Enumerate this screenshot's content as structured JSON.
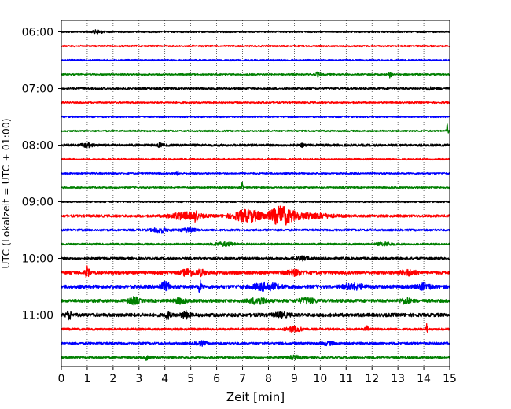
{
  "chart_data": {
    "type": "line",
    "title": "",
    "xlabel": "Zeit  [min]",
    "ylabel": "UTC (Lokalzeit = UTC + 01:00)",
    "xlim": [
      0,
      15
    ],
    "xticks": [
      "0",
      "1",
      "2",
      "3",
      "4",
      "5",
      "6",
      "7",
      "8",
      "9",
      "10",
      "11",
      "12",
      "13",
      "14",
      "15"
    ],
    "yticks": [
      "06:00",
      "07:00",
      "08:00",
      "09:00",
      "10:00",
      "11:00"
    ],
    "start_time": "06:00",
    "trace_interval_min": 15,
    "grid": "vertical dotted lines at each minute",
    "color_cycle": [
      "#000000",
      "#ff0000",
      "#0000ff",
      "#008000"
    ],
    "traces": [
      {
        "time": "06:00",
        "color": "#000000",
        "amplitude": 1.0,
        "events": [
          {
            "t": 1.4,
            "amp": 2,
            "width": 0.2
          }
        ]
      },
      {
        "time": "06:15",
        "color": "#ff0000",
        "amplitude": 1.0,
        "events": []
      },
      {
        "time": "06:30",
        "color": "#0000ff",
        "amplitude": 1.0,
        "events": []
      },
      {
        "time": "06:45",
        "color": "#008000",
        "amplitude": 1.0,
        "events": [
          {
            "t": 9.9,
            "amp": 2.5,
            "width": 0.1
          },
          {
            "t": 12.7,
            "amp": 4,
            "width": 0.05
          }
        ]
      },
      {
        "time": "07:00",
        "color": "#000000",
        "amplitude": 1.2,
        "events": [
          {
            "t": 14.2,
            "amp": 2,
            "width": 0.1
          }
        ]
      },
      {
        "time": "07:15",
        "color": "#ff0000",
        "amplitude": 1.0,
        "events": []
      },
      {
        "time": "07:30",
        "color": "#0000ff",
        "amplitude": 1.0,
        "events": []
      },
      {
        "time": "07:45",
        "color": "#008000",
        "amplitude": 1.0,
        "events": [
          {
            "t": 14.9,
            "amp": 8,
            "width": 0.04
          }
        ]
      },
      {
        "time": "08:00",
        "color": "#000000",
        "amplitude": 1.5,
        "events": [
          {
            "t": 1.0,
            "amp": 2,
            "width": 0.2
          },
          {
            "t": 3.8,
            "amp": 2,
            "width": 0.1
          },
          {
            "t": 9.3,
            "amp": 2.5,
            "width": 0.05
          }
        ]
      },
      {
        "time": "08:15",
        "color": "#ff0000",
        "amplitude": 1.0,
        "events": []
      },
      {
        "time": "08:30",
        "color": "#0000ff",
        "amplitude": 1.0,
        "events": [
          {
            "t": 4.5,
            "amp": 3,
            "width": 0.04
          }
        ]
      },
      {
        "time": "08:45",
        "color": "#008000",
        "amplitude": 1.0,
        "events": [
          {
            "t": 7.0,
            "amp": 7,
            "width": 0.04
          }
        ]
      },
      {
        "time": "09:00",
        "color": "#000000",
        "amplitude": 1.0,
        "events": []
      },
      {
        "time": "09:15",
        "color": "#ff0000",
        "amplitude": 1.6,
        "events": [
          {
            "t": 4.8,
            "amp": 4,
            "width": 0.6
          },
          {
            "t": 5.2,
            "amp": 6,
            "width": 0.05
          },
          {
            "t": 7.2,
            "amp": 7,
            "width": 0.6
          },
          {
            "t": 8.5,
            "amp": 11,
            "width": 0.45
          },
          {
            "t": 9.6,
            "amp": 3,
            "width": 0.8
          }
        ]
      },
      {
        "time": "09:30",
        "color": "#0000ff",
        "amplitude": 1.3,
        "events": [
          {
            "t": 3.8,
            "amp": 2.5,
            "width": 0.3
          },
          {
            "t": 4.9,
            "amp": 2,
            "width": 0.3
          }
        ]
      },
      {
        "time": "09:45",
        "color": "#008000",
        "amplitude": 1.2,
        "events": [
          {
            "t": 6.3,
            "amp": 2,
            "width": 0.4
          },
          {
            "t": 12.5,
            "amp": 2,
            "width": 0.3
          }
        ]
      },
      {
        "time": "10:00",
        "color": "#000000",
        "amplitude": 1.4,
        "events": [
          {
            "t": 9.3,
            "amp": 2,
            "width": 0.3
          }
        ]
      },
      {
        "time": "10:15",
        "color": "#ff0000",
        "amplitude": 2.0,
        "events": [
          {
            "t": 1.0,
            "amp": 7,
            "width": 0.08
          },
          {
            "t": 4.9,
            "amp": 4,
            "width": 0.25
          },
          {
            "t": 5.4,
            "amp": 3,
            "width": 0.2
          },
          {
            "t": 9.0,
            "amp": 3,
            "width": 0.3
          },
          {
            "t": 13.4,
            "amp": 3,
            "width": 0.3
          }
        ]
      },
      {
        "time": "10:30",
        "color": "#0000ff",
        "amplitude": 2.2,
        "events": [
          {
            "t": 4.0,
            "amp": 5,
            "width": 0.2
          },
          {
            "t": 5.35,
            "amp": 7,
            "width": 0.06
          },
          {
            "t": 7.9,
            "amp": 4,
            "width": 0.5
          },
          {
            "t": 11.3,
            "amp": 3,
            "width": 0.4
          },
          {
            "t": 14.0,
            "amp": 3,
            "width": 0.3
          }
        ]
      },
      {
        "time": "10:45",
        "color": "#008000",
        "amplitude": 2.0,
        "events": [
          {
            "t": 2.8,
            "amp": 4,
            "width": 0.2
          },
          {
            "t": 4.6,
            "amp": 3,
            "width": 0.2
          },
          {
            "t": 7.6,
            "amp": 4,
            "width": 0.3
          },
          {
            "t": 9.5,
            "amp": 3,
            "width": 0.3
          },
          {
            "t": 13.3,
            "amp": 3,
            "width": 0.2
          }
        ]
      },
      {
        "time": "11:00",
        "color": "#000000",
        "amplitude": 2.2,
        "events": [
          {
            "t": 0.3,
            "amp": 5,
            "width": 0.1
          },
          {
            "t": 4.1,
            "amp": 4,
            "width": 0.1
          },
          {
            "t": 4.8,
            "amp": 4,
            "width": 0.15
          },
          {
            "t": 8.5,
            "amp": 2,
            "width": 0.3
          }
        ]
      },
      {
        "time": "11:15",
        "color": "#ff0000",
        "amplitude": 1.4,
        "events": [
          {
            "t": 9.0,
            "amp": 3,
            "width": 0.3
          },
          {
            "t": 11.8,
            "amp": 4,
            "width": 0.06
          },
          {
            "t": 14.1,
            "amp": 9,
            "width": 0.04
          }
        ]
      },
      {
        "time": "11:30",
        "color": "#0000ff",
        "amplitude": 1.4,
        "events": [
          {
            "t": 5.4,
            "amp": 2.5,
            "width": 0.2
          },
          {
            "t": 10.3,
            "amp": 2,
            "width": 0.2
          }
        ]
      },
      {
        "time": "11:45",
        "color": "#008000",
        "amplitude": 1.3,
        "events": [
          {
            "t": 3.3,
            "amp": 3,
            "width": 0.06
          },
          {
            "t": 9.0,
            "amp": 2,
            "width": 0.3
          }
        ]
      }
    ]
  }
}
